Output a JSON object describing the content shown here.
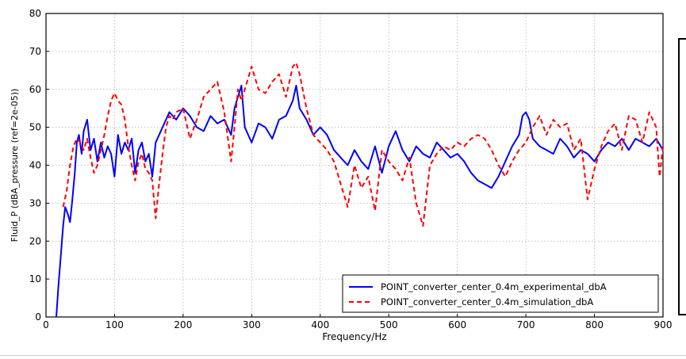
{
  "chart_data": {
    "type": "line",
    "title": "",
    "xlabel": "Frequency/Hz",
    "ylabel": "Fluid_P (dBA_pressure (ref=2e-05))",
    "xlim": [
      0,
      900
    ],
    "ylim": [
      0,
      80
    ],
    "xticks": [
      0,
      100,
      200,
      300,
      400,
      500,
      600,
      700,
      800,
      900
    ],
    "yticks": [
      0,
      10,
      20,
      30,
      40,
      50,
      60,
      70,
      80
    ],
    "grid": true,
    "legend_position": "lower-right",
    "series": [
      {
        "name": "POINT_converter_center_0.4m_experimental_dbA",
        "color": "#0000ff",
        "style": "solid",
        "x": [
          15,
          18,
          22,
          25,
          28,
          32,
          35,
          38,
          42,
          45,
          48,
          52,
          55,
          60,
          65,
          70,
          75,
          80,
          85,
          90,
          95,
          100,
          105,
          110,
          115,
          120,
          125,
          130,
          135,
          140,
          145,
          150,
          155,
          160,
          170,
          180,
          190,
          200,
          210,
          220,
          230,
          240,
          250,
          260,
          270,
          275,
          280,
          285,
          290,
          300,
          310,
          320,
          330,
          340,
          350,
          360,
          365,
          370,
          380,
          390,
          400,
          410,
          420,
          430,
          440,
          450,
          460,
          470,
          480,
          490,
          500,
          510,
          520,
          530,
          540,
          550,
          560,
          570,
          580,
          590,
          600,
          610,
          620,
          630,
          640,
          650,
          660,
          670,
          680,
          690,
          695,
          700,
          705,
          710,
          720,
          730,
          740,
          750,
          760,
          770,
          780,
          790,
          800,
          810,
          820,
          830,
          840,
          850,
          860,
          870,
          880,
          890,
          900
        ],
        "y": [
          0,
          8,
          17,
          24,
          29,
          27,
          25,
          30,
          38,
          46,
          48,
          43,
          49,
          52,
          44,
          47,
          41,
          46,
          42,
          45,
          43,
          37,
          48,
          43,
          46,
          44,
          47,
          38,
          44,
          46,
          41,
          43,
          37,
          46,
          50,
          54,
          52,
          55,
          53,
          50,
          49,
          53,
          51,
          52,
          48,
          55,
          58,
          61,
          50,
          46,
          51,
          50,
          47,
          52,
          53,
          57,
          61,
          55,
          52,
          48,
          50,
          48,
          44,
          42,
          40,
          44,
          41,
          39,
          45,
          38,
          45,
          49,
          44,
          41,
          45,
          43,
          42,
          46,
          44,
          42,
          43,
          41,
          38,
          36,
          35,
          34,
          37,
          41,
          45,
          48,
          53,
          54,
          52,
          47,
          45,
          44,
          43,
          47,
          45,
          42,
          44,
          43,
          41,
          44,
          46,
          45,
          47,
          44,
          47,
          46,
          45,
          47,
          44
        ]
      },
      {
        "name": "POINT_converter_center_0.4m_simulation_dbA",
        "color": "#ff0000",
        "style": "dashed",
        "x": [
          25,
          30,
          35,
          40,
          45,
          50,
          55,
          60,
          65,
          70,
          75,
          80,
          85,
          90,
          95,
          100,
          105,
          110,
          115,
          120,
          125,
          130,
          135,
          140,
          145,
          150,
          155,
          160,
          165,
          170,
          175,
          180,
          185,
          190,
          200,
          210,
          220,
          230,
          240,
          250,
          260,
          270,
          275,
          280,
          285,
          290,
          300,
          310,
          320,
          330,
          340,
          350,
          360,
          365,
          370,
          380,
          390,
          400,
          410,
          420,
          430,
          440,
          450,
          460,
          470,
          480,
          490,
          500,
          510,
          520,
          530,
          540,
          550,
          560,
          570,
          580,
          590,
          600,
          610,
          620,
          630,
          640,
          650,
          660,
          670,
          680,
          690,
          700,
          710,
          720,
          730,
          740,
          750,
          760,
          770,
          780,
          790,
          800,
          810,
          820,
          830,
          840,
          850,
          860,
          870,
          880,
          890,
          895,
          900
        ],
        "y": [
          29,
          33,
          40,
          45,
          47,
          46,
          44,
          47,
          42,
          38,
          40,
          44,
          48,
          53,
          57,
          59,
          57,
          56,
          52,
          45,
          40,
          36,
          41,
          43,
          39,
          38,
          36,
          26,
          35,
          43,
          50,
          53,
          52,
          54,
          55,
          47,
          52,
          58,
          60,
          62,
          54,
          41,
          50,
          60,
          57,
          60,
          66,
          60,
          59,
          62,
          64,
          58,
          66,
          67,
          64,
          55,
          48,
          46,
          44,
          41,
          35,
          29,
          40,
          34,
          37,
          28,
          44,
          41,
          39,
          36,
          42,
          30,
          24,
          40,
          43,
          45,
          44,
          46,
          45,
          47,
          48,
          47,
          44,
          40,
          37,
          41,
          44,
          46,
          50,
          53,
          48,
          52,
          50,
          51,
          44,
          47,
          31,
          39,
          45,
          49,
          51,
          44,
          53,
          52,
          46,
          54,
          50,
          37,
          45
        ]
      }
    ]
  }
}
